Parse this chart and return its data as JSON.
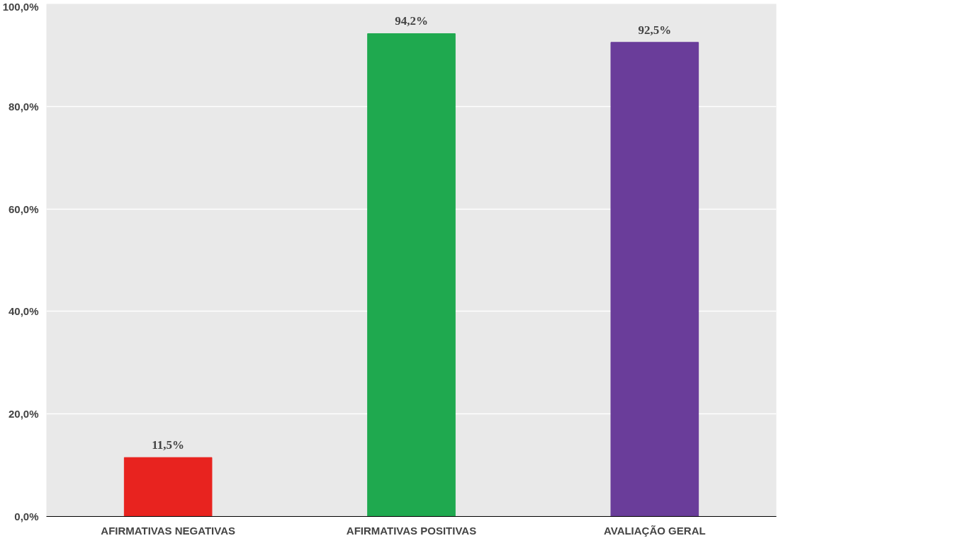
{
  "chart_data": {
    "type": "bar",
    "categories": [
      "AFIRMATIVAS NEGATIVAS",
      "AFIRMATIVAS POSITIVAS",
      "AVALIAÇÃO GERAL"
    ],
    "values": [
      11.5,
      94.2,
      92.5
    ],
    "colors": [
      "#e8231f",
      "#1fa94f",
      "#6a3d9a"
    ],
    "value_labels": [
      "11,5%",
      "94,2%",
      "92,5%"
    ],
    "ylim": [
      0,
      100
    ],
    "yticks": [
      {
        "value": 0,
        "label": "0,0%"
      },
      {
        "value": 20,
        "label": "20,0%"
      },
      {
        "value": 40,
        "label": "40,0%"
      },
      {
        "value": 60,
        "label": "60,0%"
      },
      {
        "value": 80,
        "label": "80,0%"
      },
      {
        "value": 100,
        "label": "100,0%"
      }
    ],
    "grid": "y"
  }
}
